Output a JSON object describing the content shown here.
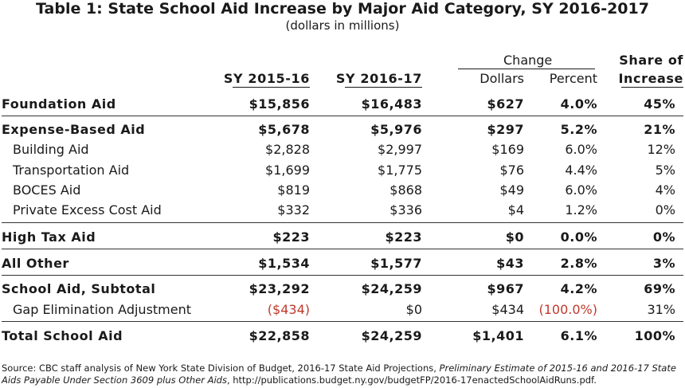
{
  "title": "Table 1: State School Aid Increase by Major Aid Category, SY 2016-2017",
  "subtitle": "(dollars in millions)",
  "headers": {
    "change_group": "Change",
    "share_line1": "Share of",
    "share_line2": "Increase",
    "sy1": "SY 2015-16",
    "sy2": "SY 2016-17",
    "dollars": "Dollars",
    "percent": "Percent"
  },
  "rows": [
    {
      "label": "Foundation Aid",
      "sy1": "$15,856",
      "sy2": "$16,483",
      "dollars": "$627",
      "percent": "4.0%",
      "share": "45%"
    },
    {
      "label": "Expense-Based Aid",
      "sy1": "$5,678",
      "sy2": "$5,976",
      "dollars": "$297",
      "percent": "5.2%",
      "share": "21%"
    },
    {
      "label": "Building Aid",
      "sy1": "$2,828",
      "sy2": "$2,997",
      "dollars": "$169",
      "percent": "6.0%",
      "share": "12%"
    },
    {
      "label": "Transportation Aid",
      "sy1": "$1,699",
      "sy2": "$1,775",
      "dollars": "$76",
      "percent": "4.4%",
      "share": "5%"
    },
    {
      "label": "BOCES Aid",
      "sy1": "$819",
      "sy2": "$868",
      "dollars": "$49",
      "percent": "6.0%",
      "share": "4%"
    },
    {
      "label": "Private Excess Cost Aid",
      "sy1": "$332",
      "sy2": "$336",
      "dollars": "$4",
      "percent": "1.2%",
      "share": "0%"
    },
    {
      "label": "High Tax Aid",
      "sy1": "$223",
      "sy2": "$223",
      "dollars": "$0",
      "percent": "0.0%",
      "share": "0%"
    },
    {
      "label": "All Other",
      "sy1": "$1,534",
      "sy2": "$1,577",
      "dollars": "$43",
      "percent": "2.8%",
      "share": "3%"
    },
    {
      "label": "School Aid, Subtotal",
      "sy1": "$23,292",
      "sy2": "$24,259",
      "dollars": "$967",
      "percent": "4.2%",
      "share": "69%"
    },
    {
      "label": "Gap Elimination Adjustment",
      "sy1": "($434)",
      "sy2": "$0",
      "dollars": "$434",
      "percent": "(100.0%)",
      "share": "31%"
    },
    {
      "label": "Total School Aid",
      "sy1": "$22,858",
      "sy2": "$24,259",
      "dollars": "$1,401",
      "percent": "6.1%",
      "share": "100%"
    }
  ],
  "source": {
    "prefix": "Source: CBC staff analysis of New York State Division of Budget, 2016-17 State Aid Projections, ",
    "italic": "Preliminary Estimate of 2015-16 and 2016-17 State Aids Payable Under Section 3609 plus Other Aids",
    "suffix": ", http://publications.budget.ny.gov/budgetFP/2016-17enactedSchoolAidRuns.pdf."
  },
  "colors": {
    "negative": "#c0392b",
    "text": "#1a1a1a"
  }
}
